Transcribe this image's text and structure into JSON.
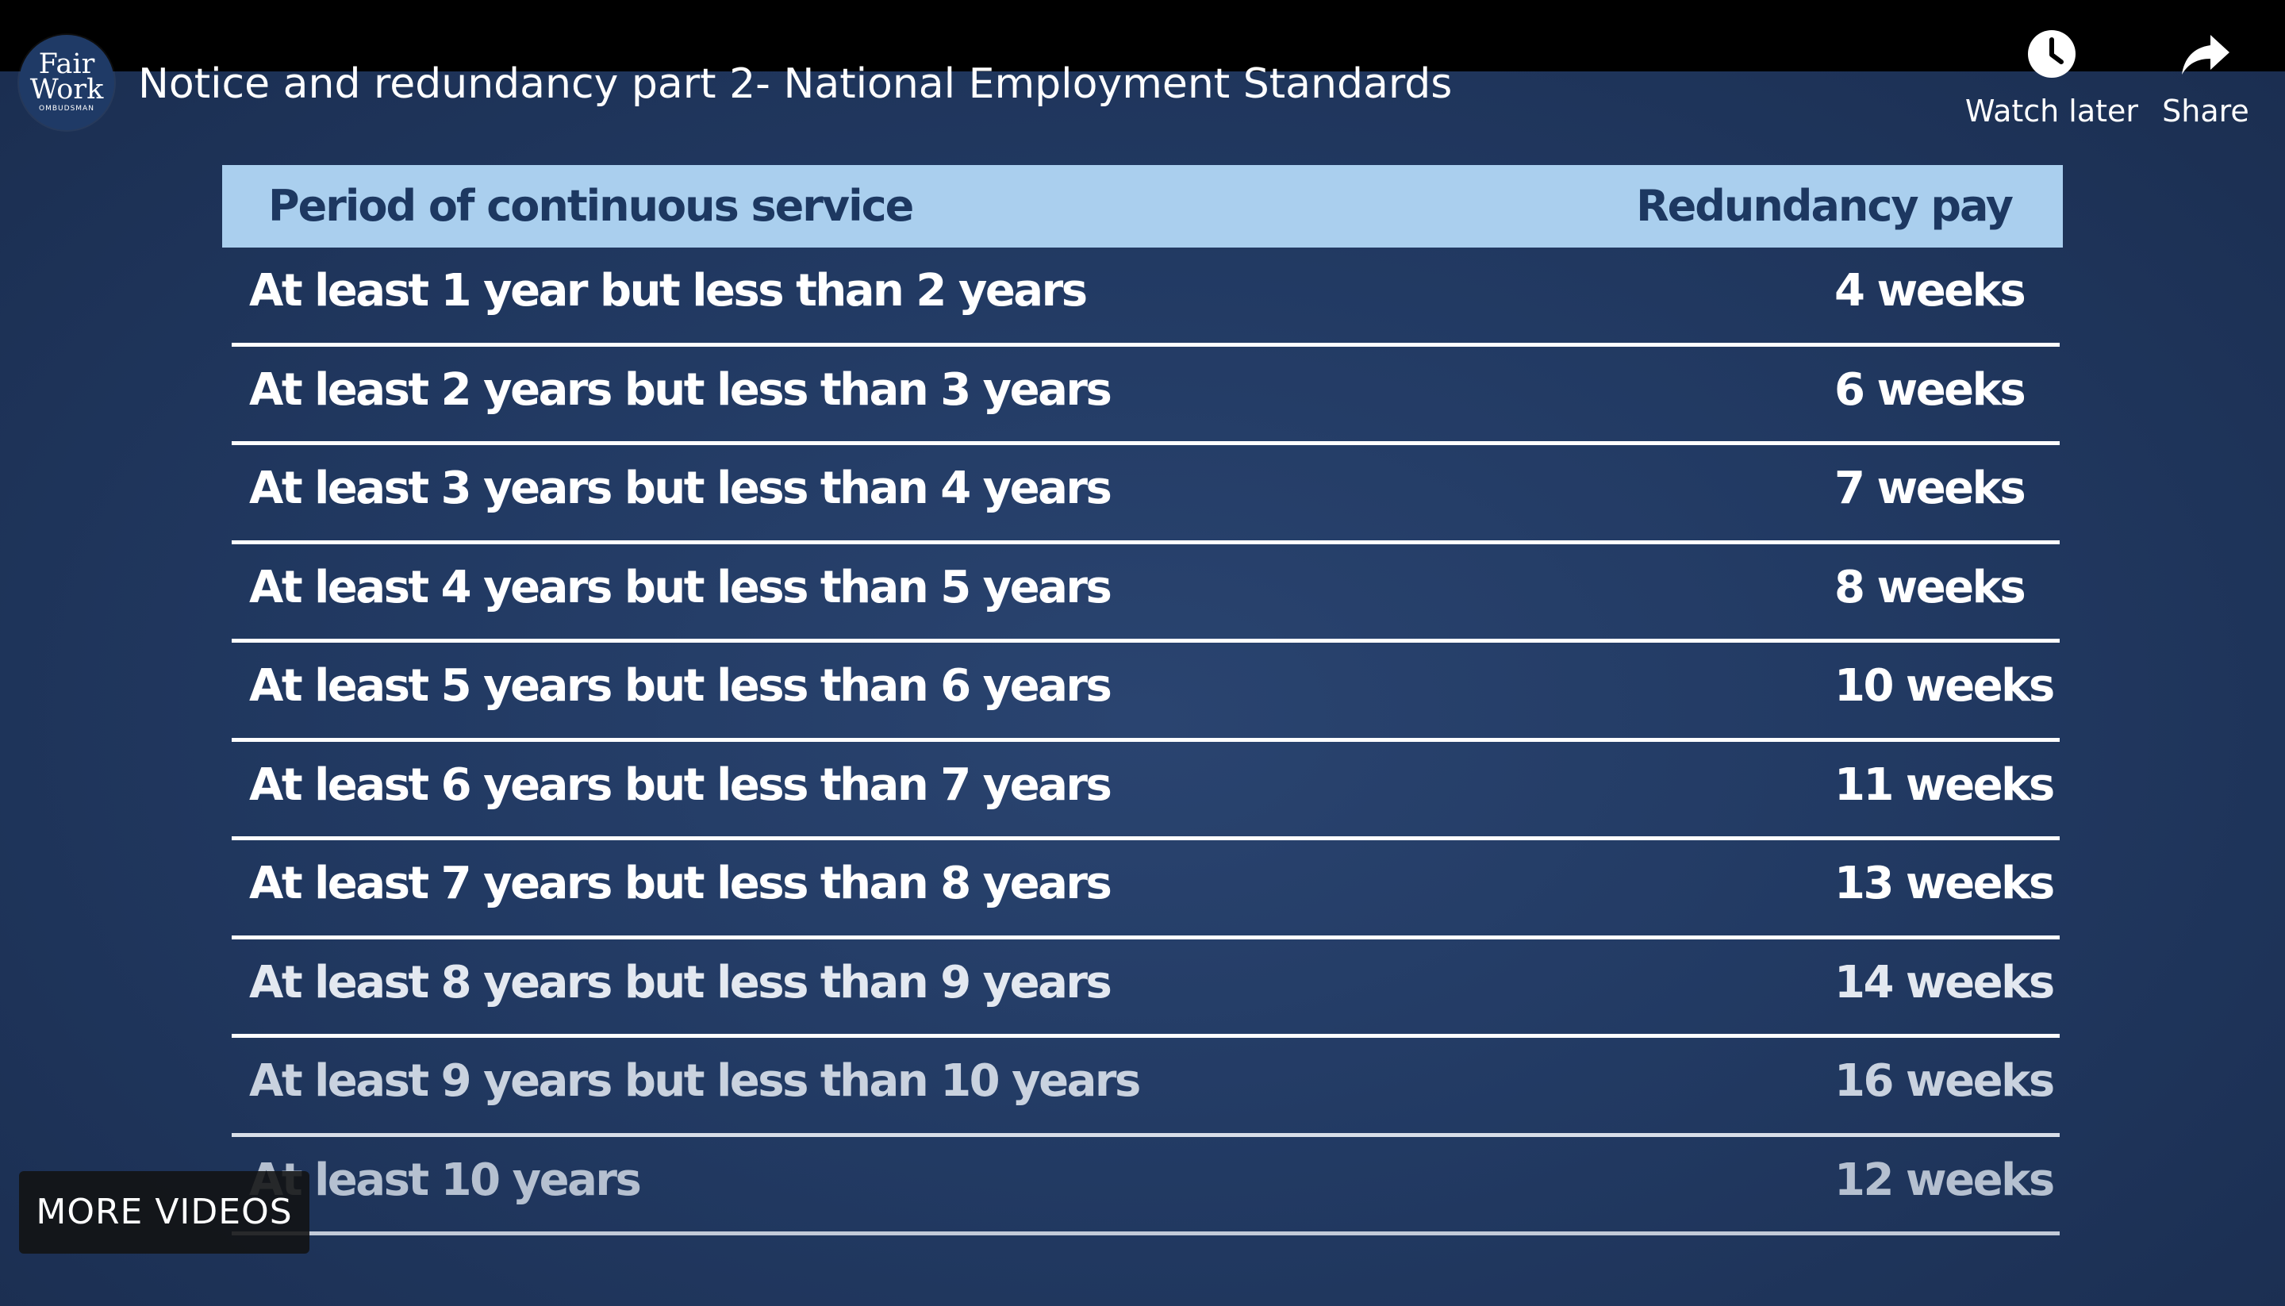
{
  "channel": {
    "logo_line1": "Fair",
    "logo_line2": "Work",
    "logo_line3": "OMBUDSMAN"
  },
  "video": {
    "title": "Notice and redundancy part 2- National Employment Standards"
  },
  "actions": {
    "watch_later": {
      "label": "Watch later",
      "icon": "clock-icon"
    },
    "share": {
      "label": "Share",
      "icon": "share-arrow-icon"
    }
  },
  "table": {
    "header_period": "Period of continuous service",
    "header_pay": "Redundancy pay",
    "rows": [
      {
        "period": "At least 1 year but less than 2 years",
        "pay": "4 weeks"
      },
      {
        "period": "At least 2 years but less than 3 years",
        "pay": "6 weeks"
      },
      {
        "period": "At least 3 years but less than 4 years",
        "pay": "7 weeks"
      },
      {
        "period": "At least 4 years but less than 5 years",
        "pay": "8 weeks"
      },
      {
        "period": "At least 5 years but less than 6 years",
        "pay": "10 weeks"
      },
      {
        "period": "At least 6 years but less than 7 years",
        "pay": "11 weeks"
      },
      {
        "period": "At least 7 years but less than 8 years",
        "pay": "13 weeks"
      },
      {
        "period": "At least 8 years but less than 9 years",
        "pay": "14 weeks"
      },
      {
        "period": "At least 9 years but less than 10 years",
        "pay": "16 weeks"
      },
      {
        "period": "At least 10 years",
        "pay": "12 weeks"
      }
    ]
  },
  "overlay": {
    "more_videos": "MORE VIDEOS"
  },
  "colors": {
    "background": "#223a63",
    "header_fill": "#aacfee",
    "header_text": "#1d3861",
    "row_text": "#ffffff"
  }
}
